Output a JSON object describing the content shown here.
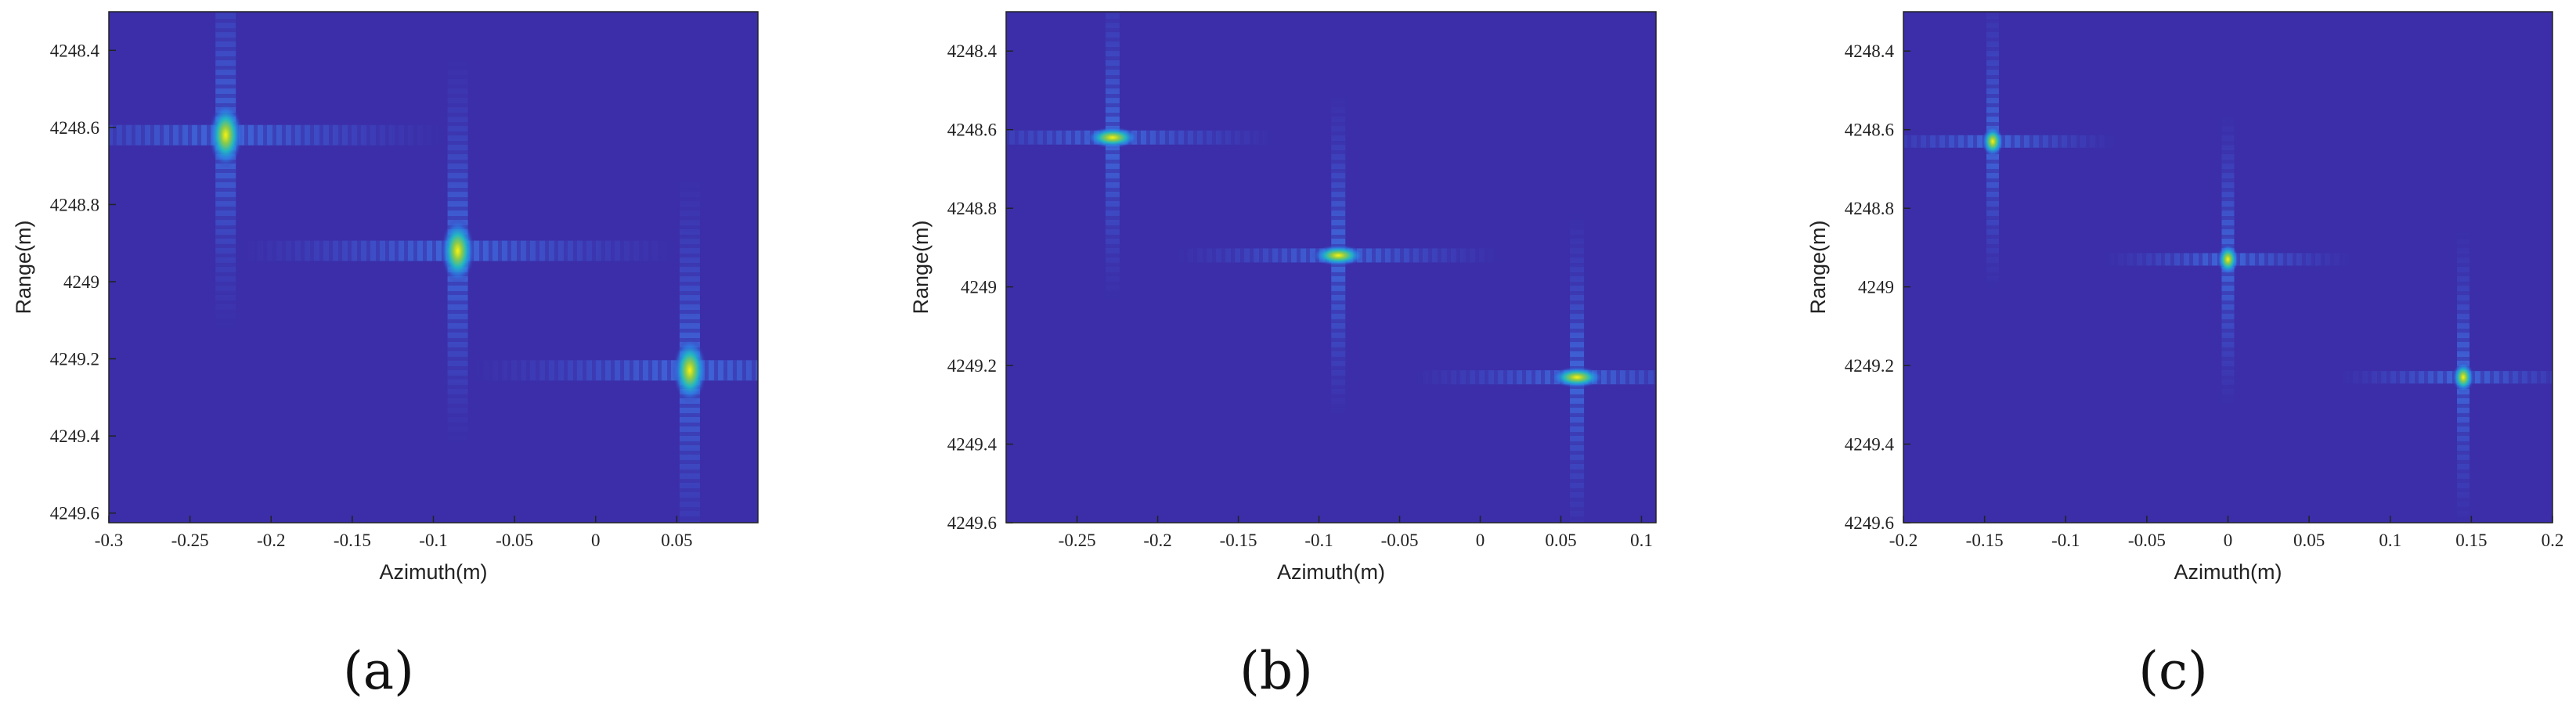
{
  "chart_data": [
    {
      "type": "heatmap",
      "xlabel": "Azimuth(m)",
      "ylabel": "Range(m)",
      "caption": "(a)",
      "x": [
        -0.228,
        -0.085,
        0.058
      ],
      "values": [
        4248.62,
        4248.92,
        4249.23
      ],
      "xlim": [
        -0.3,
        0.1
      ],
      "xticks": [
        -0.3,
        -0.25,
        -0.2,
        -0.15,
        -0.1,
        -0.05,
        0,
        0.05
      ],
      "ylim": [
        4249.625,
        4248.3
      ],
      "yticks": [
        4248.4,
        4248.6,
        4248.8,
        4249,
        4249.2,
        4249.4,
        4249.6
      ]
    },
    {
      "type": "heatmap",
      "xlabel": "Azimuth(m)",
      "ylabel": "Range(m)",
      "caption": "(b)",
      "x": [
        -0.228,
        -0.088,
        0.06
      ],
      "values": [
        4248.62,
        4248.92,
        4249.23
      ],
      "xlim": [
        -0.294,
        0.109
      ],
      "xticks": [
        -0.25,
        -0.2,
        -0.15,
        -0.1,
        -0.05,
        0,
        0.05,
        0.1
      ],
      "ylim": [
        4249.6,
        4248.3
      ],
      "yticks": [
        4248.4,
        4248.6,
        4248.8,
        4249,
        4249.2,
        4249.4,
        4249.6
      ]
    },
    {
      "type": "heatmap",
      "xlabel": "Azimuth(m)",
      "ylabel": "Range(m)",
      "caption": "(c)",
      "x": [
        -0.145,
        0,
        0.145
      ],
      "values": [
        4248.63,
        4248.93,
        4249.23
      ],
      "xlim": [
        -0.2,
        0.2
      ],
      "xticks": [
        -0.2,
        -0.15,
        -0.1,
        -0.05,
        0,
        0.05,
        0.1,
        0.15,
        0.2
      ],
      "ylim": [
        4249.6,
        4248.3
      ],
      "yticks": [
        4248.4,
        4248.6,
        4248.8,
        4249,
        4249.2,
        4249.4,
        4249.6
      ]
    }
  ]
}
